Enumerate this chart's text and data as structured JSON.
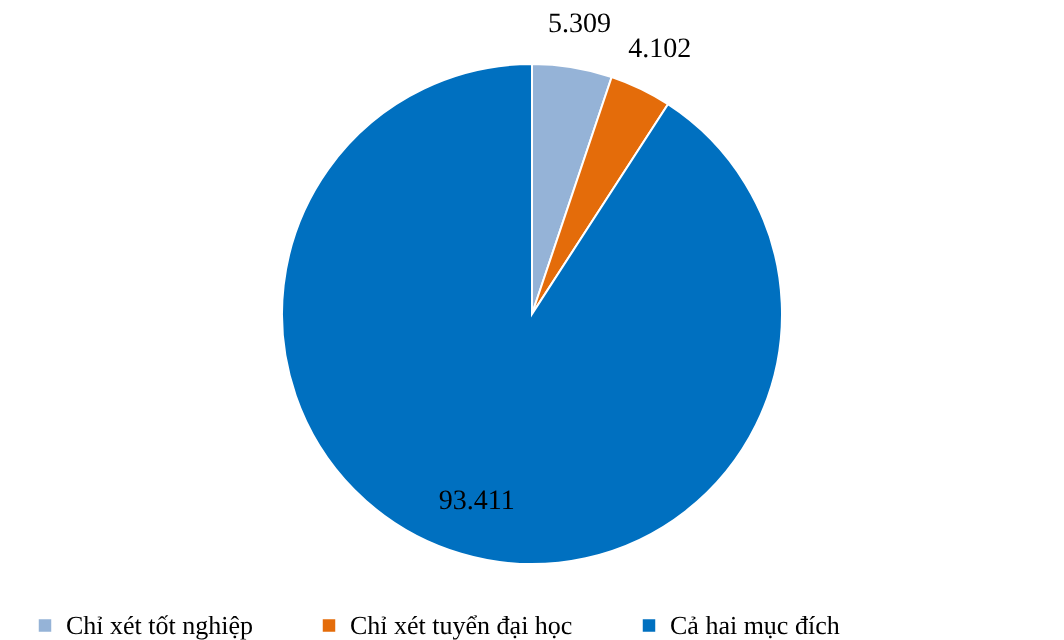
{
  "chart_data": {
    "type": "pie",
    "categories": [
      "Chỉ xét tốt nghiệp",
      "Chỉ xét tuyển đại học",
      "Cả hai mục đích"
    ],
    "values": [
      5309,
      4102,
      93411
    ],
    "value_labels": [
      "5.309",
      "4.102",
      "93.411"
    ],
    "colors": [
      "#95b3d7",
      "#e46c0a",
      "#0070c0"
    ],
    "legend": "bottom"
  }
}
